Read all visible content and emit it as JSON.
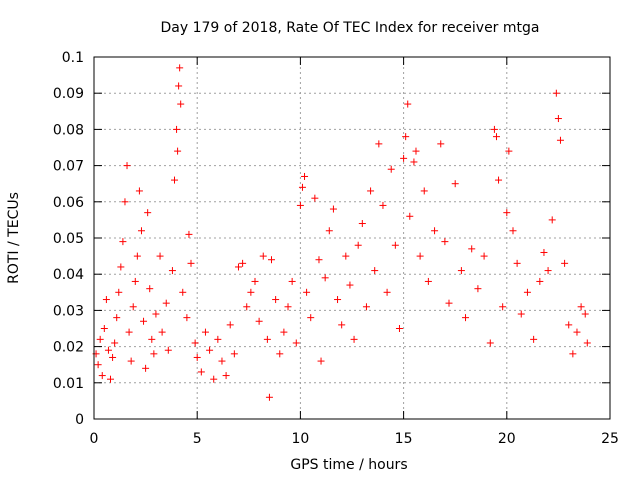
{
  "chart_data": {
    "type": "scatter",
    "title": "Day 179 of 2018, Rate Of TEC Index for receiver mtga",
    "xlabel": "GPS time / hours",
    "ylabel": "ROTI / TECUs",
    "xlim": [
      0,
      25
    ],
    "ylim": [
      0,
      0.1
    ],
    "xticks": [
      "0",
      "5",
      "10",
      "15",
      "20",
      "25"
    ],
    "yticks": [
      "0",
      "0.01",
      "0.02",
      "0.03",
      "0.04",
      "0.05",
      "0.06",
      "0.07",
      "0.08",
      "0.09",
      "0.1"
    ],
    "grid": true,
    "marker": "+",
    "color": "#ff0000",
    "series": [
      {
        "points": [
          [
            0.1,
            0.018
          ],
          [
            0.2,
            0.015
          ],
          [
            0.3,
            0.022
          ],
          [
            0.4,
            0.012
          ],
          [
            0.5,
            0.025
          ],
          [
            0.6,
            0.033
          ],
          [
            0.7,
            0.019
          ],
          [
            0.8,
            0.011
          ],
          [
            0.9,
            0.017
          ],
          [
            1.0,
            0.021
          ],
          [
            1.1,
            0.028
          ],
          [
            1.2,
            0.035
          ],
          [
            1.3,
            0.042
          ],
          [
            1.4,
            0.049
          ],
          [
            1.5,
            0.06
          ],
          [
            1.6,
            0.07
          ],
          [
            1.7,
            0.024
          ],
          [
            1.8,
            0.016
          ],
          [
            1.9,
            0.031
          ],
          [
            2.0,
            0.038
          ],
          [
            2.1,
            0.045
          ],
          [
            2.2,
            0.063
          ],
          [
            2.3,
            0.052
          ],
          [
            2.4,
            0.027
          ],
          [
            2.5,
            0.014
          ],
          [
            2.6,
            0.057
          ],
          [
            2.7,
            0.036
          ],
          [
            2.8,
            0.022
          ],
          [
            2.9,
            0.018
          ],
          [
            3.0,
            0.029
          ],
          [
            3.2,
            0.045
          ],
          [
            3.3,
            0.024
          ],
          [
            3.5,
            0.032
          ],
          [
            3.6,
            0.019
          ],
          [
            3.8,
            0.041
          ],
          [
            3.9,
            0.066
          ],
          [
            4.0,
            0.08
          ],
          [
            4.05,
            0.074
          ],
          [
            4.1,
            0.092
          ],
          [
            4.15,
            0.097
          ],
          [
            4.2,
            0.087
          ],
          [
            4.3,
            0.035
          ],
          [
            4.5,
            0.028
          ],
          [
            4.6,
            0.051
          ],
          [
            4.7,
            0.043
          ],
          [
            4.9,
            0.021
          ],
          [
            5.0,
            0.017
          ],
          [
            5.2,
            0.013
          ],
          [
            5.4,
            0.024
          ],
          [
            5.6,
            0.019
          ],
          [
            5.8,
            0.011
          ],
          [
            6.0,
            0.022
          ],
          [
            6.2,
            0.016
          ],
          [
            6.4,
            0.012
          ],
          [
            6.6,
            0.026
          ],
          [
            6.8,
            0.018
          ],
          [
            7.0,
            0.042
          ],
          [
            7.2,
            0.043
          ],
          [
            7.4,
            0.031
          ],
          [
            7.6,
            0.035
          ],
          [
            7.8,
            0.038
          ],
          [
            8.0,
            0.027
          ],
          [
            8.2,
            0.045
          ],
          [
            8.4,
            0.022
          ],
          [
            8.5,
            0.006
          ],
          [
            8.6,
            0.044
          ],
          [
            8.8,
            0.033
          ],
          [
            9.0,
            0.018
          ],
          [
            9.2,
            0.024
          ],
          [
            9.4,
            0.031
          ],
          [
            9.6,
            0.038
          ],
          [
            9.8,
            0.021
          ],
          [
            10.0,
            0.059
          ],
          [
            10.1,
            0.064
          ],
          [
            10.2,
            0.067
          ],
          [
            10.3,
            0.035
          ],
          [
            10.5,
            0.028
          ],
          [
            10.7,
            0.061
          ],
          [
            10.9,
            0.044
          ],
          [
            11.0,
            0.016
          ],
          [
            11.2,
            0.039
          ],
          [
            11.4,
            0.052
          ],
          [
            11.6,
            0.058
          ],
          [
            11.8,
            0.033
          ],
          [
            12.0,
            0.026
          ],
          [
            12.2,
            0.045
          ],
          [
            12.4,
            0.037
          ],
          [
            12.6,
            0.022
          ],
          [
            12.8,
            0.048
          ],
          [
            13.0,
            0.054
          ],
          [
            13.2,
            0.031
          ],
          [
            13.4,
            0.063
          ],
          [
            13.6,
            0.041
          ],
          [
            13.8,
            0.076
          ],
          [
            14.0,
            0.059
          ],
          [
            14.2,
            0.035
          ],
          [
            14.4,
            0.069
          ],
          [
            14.6,
            0.048
          ],
          [
            14.8,
            0.025
          ],
          [
            15.0,
            0.072
          ],
          [
            15.1,
            0.078
          ],
          [
            15.2,
            0.087
          ],
          [
            15.3,
            0.056
          ],
          [
            15.5,
            0.071
          ],
          [
            15.6,
            0.074
          ],
          [
            15.8,
            0.045
          ],
          [
            16.0,
            0.063
          ],
          [
            16.2,
            0.038
          ],
          [
            16.5,
            0.052
          ],
          [
            16.8,
            0.076
          ],
          [
            17.0,
            0.049
          ],
          [
            17.2,
            0.032
          ],
          [
            17.5,
            0.065
          ],
          [
            17.8,
            0.041
          ],
          [
            18.0,
            0.028
          ],
          [
            18.3,
            0.047
          ],
          [
            18.6,
            0.036
          ],
          [
            18.9,
            0.045
          ],
          [
            19.2,
            0.021
          ],
          [
            19.4,
            0.08
          ],
          [
            19.5,
            0.078
          ],
          [
            19.6,
            0.066
          ],
          [
            19.8,
            0.031
          ],
          [
            20.0,
            0.057
          ],
          [
            20.1,
            0.074
          ],
          [
            20.3,
            0.052
          ],
          [
            20.5,
            0.043
          ],
          [
            20.7,
            0.029
          ],
          [
            21.0,
            0.035
          ],
          [
            21.3,
            0.022
          ],
          [
            21.6,
            0.038
          ],
          [
            21.8,
            0.046
          ],
          [
            22.0,
            0.041
          ],
          [
            22.2,
            0.055
          ],
          [
            22.4,
            0.09
          ],
          [
            22.5,
            0.083
          ],
          [
            22.6,
            0.077
          ],
          [
            22.8,
            0.043
          ],
          [
            23.0,
            0.026
          ],
          [
            23.2,
            0.018
          ],
          [
            23.4,
            0.024
          ],
          [
            23.6,
            0.031
          ],
          [
            23.8,
            0.029
          ],
          [
            23.9,
            0.021
          ]
        ]
      }
    ]
  }
}
